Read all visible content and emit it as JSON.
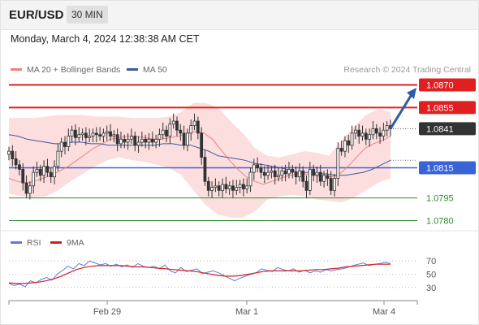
{
  "header": {
    "symbol": "EUR/USD",
    "timeframe": "30 MIN"
  },
  "datetime": "Monday, March 4, 2024 12:38:38 AM CET",
  "legend": {
    "ma20_label": "MA 20 + Bollinger Bands",
    "ma50_label": "MA 50",
    "credit": "Research © 2024 Trading Central"
  },
  "rsi_legend": {
    "rsi_label": "RSI",
    "ma9_label": "9MA"
  },
  "colors": {
    "up": "#3a3a3a",
    "down": "#3a3a3a",
    "resistance": "#e02020",
    "support": "#3a63d8",
    "target": "#2e8b2e",
    "ma20": "#f08080",
    "ma50": "#3a5ba0",
    "band_fill": "#fbd3d3",
    "arrow": "#2f5aa8",
    "rsi": "#5a7be0",
    "ma9": "#d42020"
  },
  "chart_data": [
    {
      "type": "candlestick",
      "x_ticks": [
        "Feb 29",
        "Mar 1",
        "Mar 4"
      ],
      "ylim": [
        1.077,
        1.088
      ],
      "levels": [
        {
          "value": 1.087,
          "label": "1.0870",
          "kind": "resistance"
        },
        {
          "value": 1.0855,
          "label": "1.0855",
          "kind": "resistance"
        },
        {
          "value": 1.0841,
          "label": "1.0841",
          "kind": "last"
        },
        {
          "value": 1.0815,
          "label": "1.0815",
          "kind": "support"
        },
        {
          "value": 1.0795,
          "label": "1.0795",
          "kind": "target"
        },
        {
          "value": 1.078,
          "label": "1.0780",
          "kind": "target"
        }
      ],
      "closes": [
        1.0826,
        1.0821,
        1.0817,
        1.0814,
        1.0805,
        1.0798,
        1.0803,
        1.0812,
        1.0814,
        1.081,
        1.0816,
        1.0812,
        1.0809,
        1.0816,
        1.0826,
        1.0832,
        1.0829,
        1.0836,
        1.084,
        1.0835,
        1.0837,
        1.0838,
        1.0835,
        1.0836,
        1.0838,
        1.0837,
        1.0836,
        1.0838,
        1.0839,
        1.0836,
        1.0837,
        1.0831,
        1.0834,
        1.0832,
        1.0834,
        1.0836,
        1.083,
        1.0832,
        1.0834,
        1.0832,
        1.0834,
        1.0832,
        1.0834,
        1.0837,
        1.084,
        1.0836,
        1.0844,
        1.0846,
        1.084,
        1.0838,
        1.083,
        1.0838,
        1.0843,
        1.0846,
        1.0838,
        1.0822,
        1.0806,
        1.08,
        1.0802,
        1.0803,
        1.08,
        1.0804,
        1.0801,
        1.0803,
        1.08,
        1.0802,
        1.0804,
        1.0801,
        1.0803,
        1.0812,
        1.0817,
        1.0815,
        1.0812,
        1.081,
        1.0812,
        1.0813,
        1.0809,
        1.081,
        1.0813,
        1.0811,
        1.0814,
        1.0812,
        1.0809,
        1.0813,
        1.0806,
        1.08,
        1.0814,
        1.081,
        1.0812,
        1.0806,
        1.081,
        1.0808,
        1.08,
        1.0808,
        1.0828,
        1.0826,
        1.0833,
        1.083,
        1.0838,
        1.084,
        1.0836,
        1.0838,
        1.0834,
        1.0837,
        1.0841,
        1.0838,
        1.0836,
        1.084,
        1.0843,
        1.0841
      ],
      "ma20": [
        1.0808,
        1.0806,
        1.0805,
        1.0806,
        1.0808,
        1.081,
        1.0813,
        1.0816,
        1.082,
        1.0824,
        1.0828,
        1.0831,
        1.0834,
        1.0835,
        1.0836,
        1.0836,
        1.0835,
        1.0834,
        1.0834,
        1.0835,
        1.0836,
        1.0838,
        1.0839,
        1.0838,
        1.0834,
        1.0827,
        1.082,
        1.0814,
        1.0809,
        1.0806,
        1.0804,
        1.0806,
        1.0808,
        1.081,
        1.0811,
        1.0811,
        1.081,
        1.0809,
        1.0809,
        1.0811,
        1.0816,
        1.0822,
        1.0828,
        1.0831,
        1.0833,
        1.0836
      ],
      "ma50": [
        1.0837,
        1.0836,
        1.0834,
        1.0833,
        1.0832,
        1.0831,
        1.0831,
        1.0832,
        1.0832,
        1.0831,
        1.0831,
        1.083,
        1.083,
        1.083,
        1.083,
        1.083,
        1.083,
        1.0831,
        1.0831,
        1.083,
        1.083,
        1.0828,
        1.0826,
        1.0823,
        1.0822,
        1.0821,
        1.082,
        1.0818,
        1.0817,
        1.0816,
        1.0815,
        1.0813,
        1.0812,
        1.0812,
        1.0811,
        1.0811,
        1.081,
        1.081,
        1.0811,
        1.0812,
        1.0814,
        1.0817,
        1.082
      ],
      "bb_upper": [
        1.0848,
        1.0848,
        1.0848,
        1.0849,
        1.085,
        1.085,
        1.085,
        1.0849,
        1.0849,
        1.0849,
        1.0848,
        1.0848,
        1.0848,
        1.0849,
        1.0852,
        1.0858,
        1.0858,
        1.0855,
        1.0846,
        1.0838,
        1.0828,
        1.0823,
        1.0822,
        1.0824,
        1.0826,
        1.0825,
        1.0823,
        1.0833,
        1.0842,
        1.085,
        1.0854,
        1.0852
      ],
      "bb_lower": [
        1.0798,
        1.0796,
        1.0795,
        1.0796,
        1.08,
        1.0806,
        1.0811,
        1.0816,
        1.082,
        1.0822,
        1.082,
        1.0819,
        1.0817,
        1.0815,
        1.081,
        1.08,
        1.079,
        1.0784,
        1.0782,
        1.0782,
        1.0786,
        1.0794,
        1.0796,
        1.0797,
        1.0796,
        1.0794,
        1.0793,
        1.0792,
        1.0795,
        1.08,
        1.0805,
        1.0808
      ]
    },
    {
      "type": "line",
      "name": "RSI",
      "y_ticks": [
        "70",
        "50",
        "30"
      ],
      "ylim": [
        15,
        80
      ],
      "rsi": [
        36,
        33,
        35,
        31,
        40,
        37,
        42,
        45,
        41,
        50,
        56,
        62,
        58,
        66,
        63,
        70,
        67,
        64,
        66,
        62,
        65,
        61,
        64,
        60,
        66,
        62,
        60,
        62,
        58,
        64,
        55,
        52,
        60,
        54,
        56,
        58,
        51,
        53,
        55,
        52,
        48,
        44,
        40,
        44,
        47,
        50,
        52,
        58,
        56,
        54,
        60,
        57,
        55,
        58,
        53,
        56,
        52,
        55,
        53,
        57,
        55,
        57,
        58,
        60,
        63,
        65,
        67,
        63,
        65,
        66,
        68,
        66
      ],
      "ma9": [
        37,
        36,
        36,
        37,
        38,
        40,
        43,
        47,
        52,
        57,
        60,
        62,
        63,
        63,
        63,
        63,
        62,
        61,
        61,
        60,
        59,
        58,
        57,
        56,
        55,
        54,
        52,
        50,
        48,
        47,
        47,
        48,
        50,
        52,
        54,
        55,
        55,
        55,
        55,
        55,
        56,
        57,
        57,
        58,
        59,
        61,
        62,
        63,
        64,
        65,
        65,
        65
      ]
    }
  ]
}
